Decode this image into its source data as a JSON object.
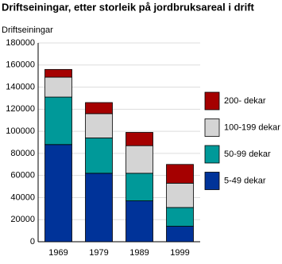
{
  "chart_data": {
    "type": "stacked-bar",
    "title": "Driftseiningar, etter storleik på jordbruksareal i drift",
    "y_label": "Driftseiningar",
    "categories": [
      "1969",
      "1979",
      "1989",
      "1999"
    ],
    "series": [
      {
        "name": "5-49 dekar",
        "color": "#003399",
        "values": [
          88000,
          62000,
          37000,
          14000
        ]
      },
      {
        "name": "50-99 dekar",
        "color": "#009999",
        "values": [
          43000,
          32000,
          25000,
          17000
        ]
      },
      {
        "name": "100-199 dekar",
        "color": "#d4d4d4",
        "values": [
          18000,
          22000,
          25000,
          22000
        ]
      },
      {
        "name": "200- dekar",
        "color": "#a50000",
        "values": [
          7000,
          10000,
          12000,
          17000
        ]
      }
    ],
    "ylim": [
      0,
      180000
    ],
    "yticks": [
      0,
      20000,
      40000,
      60000,
      80000,
      100000,
      120000,
      140000,
      160000,
      180000
    ],
    "grid": true
  }
}
